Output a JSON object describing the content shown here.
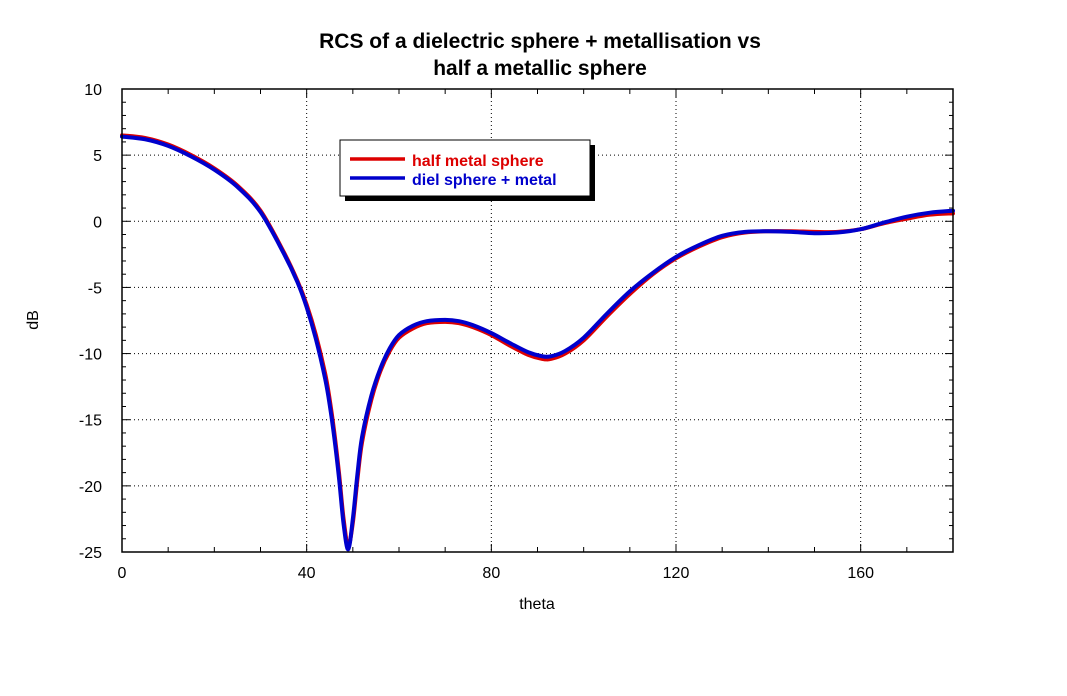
{
  "chart_data": {
    "type": "line",
    "title_lines": [
      "RCS of a dielectric sphere + metallisation vs",
      "half a metallic sphere"
    ],
    "xlabel": "theta",
    "ylabel": "dB",
    "xlim": [
      0,
      180
    ],
    "ylim": [
      -25,
      10
    ],
    "xticks": [
      0,
      40,
      80,
      120,
      160
    ],
    "yticks": [
      -25,
      -20,
      -15,
      -10,
      -5,
      0,
      5,
      10
    ],
    "grid": true,
    "legend_position": "top-left-inside",
    "series": [
      {
        "name": "half metal sphere",
        "color": "#dd0000",
        "points": [
          [
            0,
            6.5
          ],
          [
            5,
            6.3
          ],
          [
            10,
            5.8
          ],
          [
            15,
            5.0
          ],
          [
            20,
            4.0
          ],
          [
            25,
            2.7
          ],
          [
            30,
            0.8
          ],
          [
            35,
            -2.3
          ],
          [
            38,
            -4.5
          ],
          [
            40,
            -6.3
          ],
          [
            42,
            -8.6
          ],
          [
            44,
            -11.5
          ],
          [
            45,
            -13.5
          ],
          [
            46,
            -16.0
          ],
          [
            47,
            -19.0
          ],
          [
            48,
            -22.5
          ],
          [
            49,
            -24.5
          ],
          [
            50,
            -22.8
          ],
          [
            51,
            -19.5
          ],
          [
            52,
            -16.7
          ],
          [
            54,
            -13.5
          ],
          [
            56,
            -11.3
          ],
          [
            58,
            -9.8
          ],
          [
            60,
            -8.8
          ],
          [
            63,
            -8.1
          ],
          [
            66,
            -7.7
          ],
          [
            70,
            -7.6
          ],
          [
            73,
            -7.7
          ],
          [
            76,
            -8.0
          ],
          [
            80,
            -8.6
          ],
          [
            84,
            -9.4
          ],
          [
            88,
            -10.1
          ],
          [
            91,
            -10.4
          ],
          [
            93,
            -10.4
          ],
          [
            96,
            -10.0
          ],
          [
            100,
            -9.0
          ],
          [
            105,
            -7.2
          ],
          [
            110,
            -5.5
          ],
          [
            115,
            -4.0
          ],
          [
            120,
            -2.8
          ],
          [
            125,
            -1.9
          ],
          [
            130,
            -1.2
          ],
          [
            135,
            -0.85
          ],
          [
            140,
            -0.75
          ],
          [
            145,
            -0.75
          ],
          [
            150,
            -0.8
          ],
          [
            155,
            -0.8
          ],
          [
            160,
            -0.6
          ],
          [
            165,
            -0.15
          ],
          [
            170,
            0.2
          ],
          [
            175,
            0.5
          ],
          [
            180,
            0.6
          ]
        ]
      },
      {
        "name": "diel sphere + metal",
        "color": "#0000cc",
        "points": [
          [
            0,
            6.4
          ],
          [
            5,
            6.2
          ],
          [
            10,
            5.7
          ],
          [
            15,
            4.9
          ],
          [
            20,
            3.9
          ],
          [
            25,
            2.6
          ],
          [
            30,
            0.7
          ],
          [
            35,
            -2.4
          ],
          [
            38,
            -4.6
          ],
          [
            40,
            -6.5
          ],
          [
            42,
            -8.9
          ],
          [
            44,
            -11.9
          ],
          [
            45,
            -13.9
          ],
          [
            46,
            -16.4
          ],
          [
            47,
            -19.4
          ],
          [
            48,
            -22.9
          ],
          [
            49,
            -24.8
          ],
          [
            50,
            -22.5
          ],
          [
            51,
            -19.1
          ],
          [
            52,
            -16.3
          ],
          [
            54,
            -13.2
          ],
          [
            56,
            -11.1
          ],
          [
            58,
            -9.6
          ],
          [
            60,
            -8.6
          ],
          [
            63,
            -7.9
          ],
          [
            66,
            -7.55
          ],
          [
            70,
            -7.45
          ],
          [
            73,
            -7.55
          ],
          [
            76,
            -7.85
          ],
          [
            80,
            -8.45
          ],
          [
            84,
            -9.2
          ],
          [
            88,
            -9.9
          ],
          [
            91,
            -10.2
          ],
          [
            93,
            -10.2
          ],
          [
            96,
            -9.8
          ],
          [
            100,
            -8.8
          ],
          [
            105,
            -7.0
          ],
          [
            110,
            -5.3
          ],
          [
            115,
            -3.9
          ],
          [
            120,
            -2.7
          ],
          [
            125,
            -1.8
          ],
          [
            130,
            -1.1
          ],
          [
            135,
            -0.8
          ],
          [
            140,
            -0.75
          ],
          [
            145,
            -0.8
          ],
          [
            150,
            -0.9
          ],
          [
            155,
            -0.85
          ],
          [
            160,
            -0.6
          ],
          [
            165,
            -0.1
          ],
          [
            170,
            0.35
          ],
          [
            175,
            0.65
          ],
          [
            180,
            0.8
          ]
        ]
      }
    ]
  }
}
